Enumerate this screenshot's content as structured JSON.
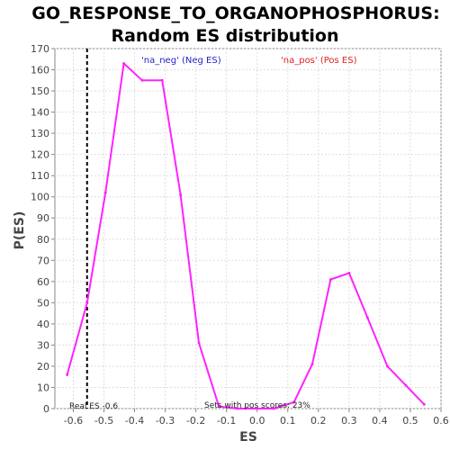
{
  "chart_data": {
    "type": "line",
    "title_line1": "GO_RESPONSE_TO_ORGANOPHOSPHORUS:",
    "title_line2": "Random ES distribution",
    "xlabel": "ES",
    "ylabel": "P(ES)",
    "xlim": [
      -0.66,
      0.6
    ],
    "ylim": [
      0,
      170
    ],
    "x_ticks": [
      -0.6,
      -0.5,
      -0.4,
      -0.3,
      -0.2,
      -0.1,
      0.0,
      0.1,
      0.2,
      0.3,
      0.4,
      0.5,
      0.6
    ],
    "x_tick_labels": [
      "-0.6",
      "-0.5",
      "-0.4",
      "-0.3",
      "-0.2",
      "-0.1",
      "0.0",
      "0.1",
      "0.2",
      "0.3",
      "0.4",
      "0.5",
      "0.6"
    ],
    "y_ticks": [
      0,
      10,
      20,
      30,
      40,
      50,
      60,
      70,
      80,
      90,
      100,
      110,
      120,
      130,
      140,
      150,
      160,
      170
    ],
    "y_tick_labels": [
      "0",
      "10",
      "20",
      "30",
      "40",
      "50",
      "60",
      "70",
      "80",
      "90",
      "100",
      "110",
      "120",
      "130",
      "140",
      "150",
      "160",
      "170"
    ],
    "grid": true,
    "legend": [
      {
        "label": "'na_neg' (Neg ES)",
        "color": "#2222cc"
      },
      {
        "label": "'na_pos' (Pos ES)",
        "color": "#dd2222"
      }
    ],
    "series": [
      {
        "color": "#ff22ff",
        "x": [
          -0.62,
          -0.555,
          -0.495,
          -0.435,
          -0.375,
          -0.31,
          -0.25,
          -0.19,
          -0.125,
          -0.065,
          0.0,
          0.055,
          0.12,
          0.18,
          0.24,
          0.3,
          0.36,
          0.425,
          0.485,
          0.545
        ],
        "y": [
          16,
          50,
          102,
          163,
          155,
          155,
          101,
          31,
          1,
          0,
          0,
          0,
          3,
          21,
          61,
          64,
          43,
          20,
          11,
          2
        ]
      }
    ],
    "real_es": -0.555,
    "real_es_color": "#000000",
    "annotation_real_es": "Real ES -0.6",
    "annotation_pos_scores": "Sets with pos scores: 23%"
  }
}
